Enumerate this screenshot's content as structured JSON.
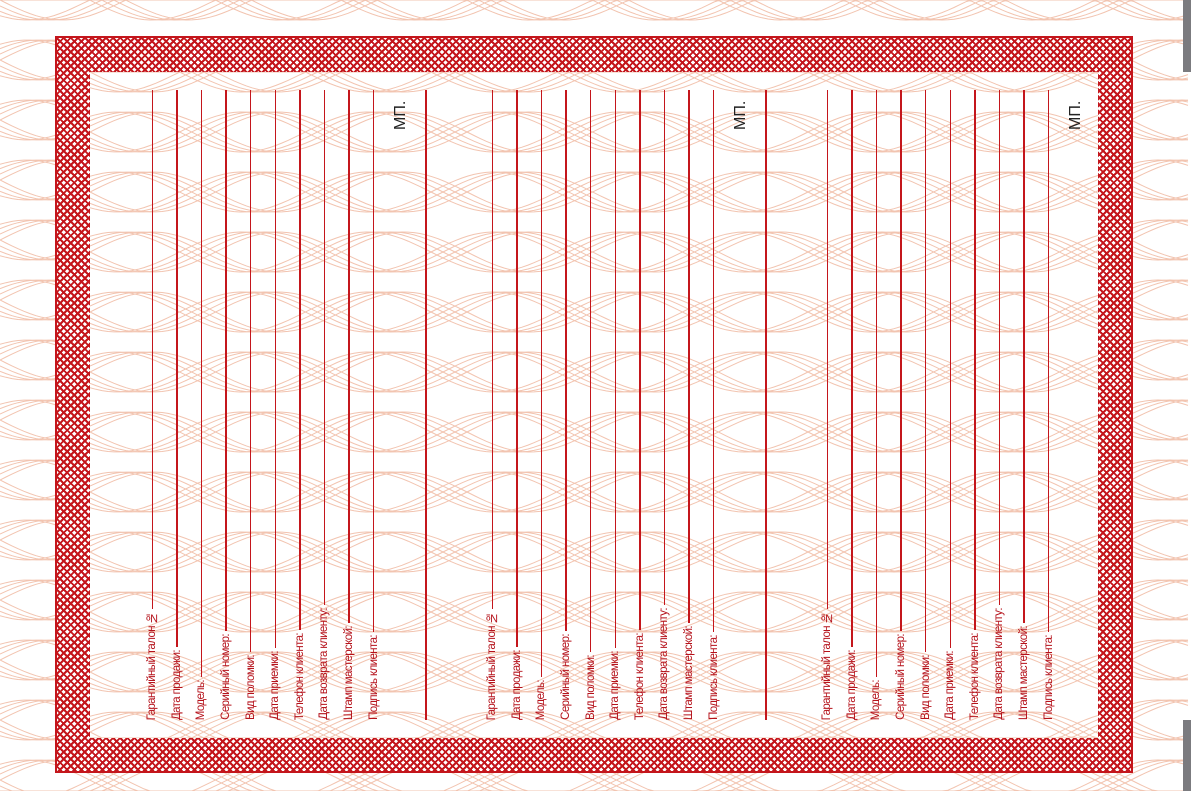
{
  "card": {
    "fields": [
      "Гарантийный талон №",
      "Дата продажи:",
      "Модель:",
      "Серийный номер:",
      "Вид поломки:",
      "Дата приемки:",
      "Телефон клиента:",
      "Дата возврата клиенту:",
      "Штамп мастерской:",
      "Подпись клиента:"
    ],
    "stamp_label": "МП."
  },
  "colors": {
    "accent": "#c4161c",
    "guilloche": "#f2c4b0"
  }
}
